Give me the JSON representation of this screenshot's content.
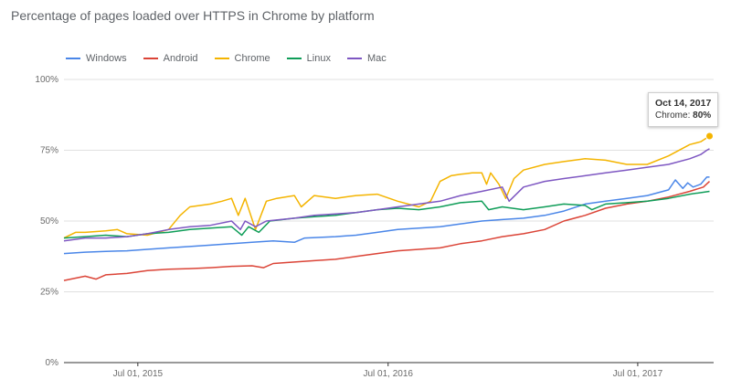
{
  "title": "Percentage of pages loaded over HTTPS in Chrome by platform",
  "tooltip": {
    "date": "Oct 14, 2017",
    "series": "Chrome",
    "value": "80%"
  },
  "chart_data": {
    "type": "line",
    "title": "Percentage of pages loaded over HTTPS in Chrome by platform",
    "xlabel": "",
    "ylabel": "",
    "ylim": [
      0,
      100
    ],
    "legend_position": "top-left",
    "grid": true,
    "y_ticks": [
      {
        "value": 0,
        "label": "0%"
      },
      {
        "value": 25,
        "label": "25%"
      },
      {
        "value": 50,
        "label": "50%"
      },
      {
        "value": 75,
        "label": "75%"
      },
      {
        "value": 100,
        "label": "100%"
      }
    ],
    "x_ticks": [
      {
        "value": "2015-07-01",
        "label": "Jul 01, 2015"
      },
      {
        "value": "2016-07-01",
        "label": "Jul 01, 2016"
      },
      {
        "value": "2017-07-01",
        "label": "Jul 01, 2017"
      }
    ],
    "x_range": [
      "2015-03-15",
      "2017-10-20"
    ],
    "series": [
      {
        "name": "Windows",
        "color": "#4a86e8",
        "points": [
          [
            "2015-03-15",
            38.5
          ],
          [
            "2015-04-15",
            39
          ],
          [
            "2015-05-15",
            39.3
          ],
          [
            "2015-06-15",
            39.5
          ],
          [
            "2015-07-15",
            40
          ],
          [
            "2015-08-15",
            40.5
          ],
          [
            "2015-09-15",
            41
          ],
          [
            "2015-10-15",
            41.5
          ],
          [
            "2015-11-15",
            42
          ],
          [
            "2015-12-15",
            42.5
          ],
          [
            "2016-01-15",
            43
          ],
          [
            "2016-02-15",
            42.5
          ],
          [
            "2016-03-01",
            44
          ],
          [
            "2016-04-15",
            44.5
          ],
          [
            "2016-05-15",
            45
          ],
          [
            "2016-06-15",
            46
          ],
          [
            "2016-07-15",
            47
          ],
          [
            "2016-08-15",
            47.5
          ],
          [
            "2016-09-15",
            48
          ],
          [
            "2016-10-15",
            49
          ],
          [
            "2016-11-15",
            50
          ],
          [
            "2016-12-15",
            50.5
          ],
          [
            "2017-01-15",
            51
          ],
          [
            "2017-02-15",
            52
          ],
          [
            "2017-03-15",
            53.5
          ],
          [
            "2017-04-15",
            56
          ],
          [
            "2017-05-15",
            57
          ],
          [
            "2017-06-15",
            58
          ],
          [
            "2017-07-15",
            59
          ],
          [
            "2017-08-15",
            61
          ],
          [
            "2017-08-25",
            64.5
          ],
          [
            "2017-09-05",
            61.5
          ],
          [
            "2017-09-12",
            63.5
          ],
          [
            "2017-09-20",
            62
          ],
          [
            "2017-10-01",
            63
          ],
          [
            "2017-10-10",
            65.5
          ],
          [
            "2017-10-14",
            65.5
          ]
        ]
      },
      {
        "name": "Android",
        "color": "#db4437",
        "points": [
          [
            "2015-03-15",
            29
          ],
          [
            "2015-04-15",
            30.5
          ],
          [
            "2015-05-01",
            29.5
          ],
          [
            "2015-05-15",
            31
          ],
          [
            "2015-06-15",
            31.5
          ],
          [
            "2015-07-15",
            32.5
          ],
          [
            "2015-08-15",
            33
          ],
          [
            "2015-09-15",
            33.2
          ],
          [
            "2015-10-15",
            33.5
          ],
          [
            "2015-11-15",
            34
          ],
          [
            "2015-12-15",
            34.2
          ],
          [
            "2016-01-01",
            33.5
          ],
          [
            "2016-01-15",
            35
          ],
          [
            "2016-02-15",
            35.5
          ],
          [
            "2016-03-15",
            36
          ],
          [
            "2016-04-15",
            36.5
          ],
          [
            "2016-05-15",
            37.5
          ],
          [
            "2016-06-15",
            38.5
          ],
          [
            "2016-07-15",
            39.5
          ],
          [
            "2016-08-15",
            40
          ],
          [
            "2016-09-15",
            40.5
          ],
          [
            "2016-10-15",
            42
          ],
          [
            "2016-11-15",
            43
          ],
          [
            "2016-12-15",
            44.5
          ],
          [
            "2017-01-15",
            45.5
          ],
          [
            "2017-02-15",
            47
          ],
          [
            "2017-03-15",
            50
          ],
          [
            "2017-04-15",
            52
          ],
          [
            "2017-05-15",
            54.5
          ],
          [
            "2017-06-15",
            56
          ],
          [
            "2017-07-15",
            57
          ],
          [
            "2017-08-15",
            58.5
          ],
          [
            "2017-09-15",
            60.5
          ],
          [
            "2017-10-05",
            62
          ],
          [
            "2017-10-14",
            64
          ]
        ]
      },
      {
        "name": "Chrome",
        "color": "#f4b400",
        "points": [
          [
            "2015-03-15",
            44
          ],
          [
            "2015-04-01",
            46
          ],
          [
            "2015-04-15",
            46
          ],
          [
            "2015-05-15",
            46.5
          ],
          [
            "2015-06-01",
            47
          ],
          [
            "2015-06-15",
            45.5
          ],
          [
            "2015-07-15",
            45
          ],
          [
            "2015-08-15",
            47
          ],
          [
            "2015-09-01",
            52
          ],
          [
            "2015-09-15",
            55
          ],
          [
            "2015-10-15",
            56
          ],
          [
            "2015-11-01",
            57
          ],
          [
            "2015-11-15",
            58
          ],
          [
            "2015-11-25",
            52
          ],
          [
            "2015-12-05",
            58
          ],
          [
            "2015-12-20",
            47
          ],
          [
            "2016-01-05",
            57
          ],
          [
            "2016-01-20",
            58
          ],
          [
            "2016-02-15",
            59
          ],
          [
            "2016-02-25",
            55
          ],
          [
            "2016-03-15",
            59
          ],
          [
            "2016-04-15",
            58
          ],
          [
            "2016-05-15",
            59
          ],
          [
            "2016-06-15",
            59.5
          ],
          [
            "2016-07-15",
            57
          ],
          [
            "2016-08-15",
            55
          ],
          [
            "2016-09-01",
            57
          ],
          [
            "2016-09-15",
            64
          ],
          [
            "2016-10-01",
            66
          ],
          [
            "2016-10-15",
            66.5
          ],
          [
            "2016-11-01",
            67
          ],
          [
            "2016-11-15",
            67
          ],
          [
            "2016-11-22",
            63
          ],
          [
            "2016-11-28",
            67
          ],
          [
            "2016-12-10",
            63
          ],
          [
            "2016-12-20",
            58
          ],
          [
            "2017-01-01",
            65
          ],
          [
            "2017-01-15",
            68
          ],
          [
            "2017-02-15",
            70
          ],
          [
            "2017-03-15",
            71
          ],
          [
            "2017-04-15",
            72
          ],
          [
            "2017-05-15",
            71.5
          ],
          [
            "2017-06-15",
            70
          ],
          [
            "2017-07-15",
            70
          ],
          [
            "2017-08-15",
            73
          ],
          [
            "2017-09-15",
            77
          ],
          [
            "2017-10-01",
            78
          ],
          [
            "2017-10-14",
            80
          ]
        ]
      },
      {
        "name": "Linux",
        "color": "#0f9d58",
        "points": [
          [
            "2015-03-15",
            44
          ],
          [
            "2015-04-15",
            44.5
          ],
          [
            "2015-05-15",
            45
          ],
          [
            "2015-06-15",
            44.5
          ],
          [
            "2015-07-15",
            45.5
          ],
          [
            "2015-08-15",
            46
          ],
          [
            "2015-09-15",
            47
          ],
          [
            "2015-10-15",
            47.5
          ],
          [
            "2015-11-15",
            48
          ],
          [
            "2015-11-30",
            45
          ],
          [
            "2015-12-10",
            48
          ],
          [
            "2015-12-25",
            46
          ],
          [
            "2016-01-10",
            50
          ],
          [
            "2016-02-15",
            51
          ],
          [
            "2016-03-15",
            51.5
          ],
          [
            "2016-04-15",
            52
          ],
          [
            "2016-05-15",
            53
          ],
          [
            "2016-06-15",
            54
          ],
          [
            "2016-07-15",
            54.5
          ],
          [
            "2016-08-15",
            54
          ],
          [
            "2016-09-15",
            55
          ],
          [
            "2016-10-15",
            56.5
          ],
          [
            "2016-11-15",
            57
          ],
          [
            "2016-11-25",
            54
          ],
          [
            "2016-12-15",
            55
          ],
          [
            "2017-01-15",
            54
          ],
          [
            "2017-02-15",
            55
          ],
          [
            "2017-03-15",
            56
          ],
          [
            "2017-04-15",
            55.5
          ],
          [
            "2017-04-25",
            54
          ],
          [
            "2017-05-15",
            56
          ],
          [
            "2017-06-15",
            56.5
          ],
          [
            "2017-07-15",
            57
          ],
          [
            "2017-08-15",
            58
          ],
          [
            "2017-09-15",
            59.5
          ],
          [
            "2017-10-14",
            60.5
          ]
        ]
      },
      {
        "name": "Mac",
        "color": "#7e57c2",
        "points": [
          [
            "2015-03-15",
            43
          ],
          [
            "2015-04-15",
            44
          ],
          [
            "2015-05-15",
            44
          ],
          [
            "2015-06-15",
            44.5
          ],
          [
            "2015-07-15",
            45.5
          ],
          [
            "2015-08-15",
            47
          ],
          [
            "2015-09-15",
            48
          ],
          [
            "2015-10-15",
            48.5
          ],
          [
            "2015-11-15",
            50
          ],
          [
            "2015-11-28",
            47
          ],
          [
            "2015-12-05",
            50
          ],
          [
            "2015-12-20",
            48
          ],
          [
            "2016-01-05",
            50
          ],
          [
            "2016-02-15",
            51
          ],
          [
            "2016-03-15",
            52
          ],
          [
            "2016-04-15",
            52.5
          ],
          [
            "2016-05-15",
            53
          ],
          [
            "2016-06-15",
            54
          ],
          [
            "2016-07-15",
            55
          ],
          [
            "2016-08-15",
            56
          ],
          [
            "2016-09-15",
            57
          ],
          [
            "2016-10-15",
            59
          ],
          [
            "2016-11-15",
            60.5
          ],
          [
            "2016-12-15",
            62
          ],
          [
            "2016-12-25",
            57
          ],
          [
            "2017-01-15",
            62
          ],
          [
            "2017-02-15",
            64
          ],
          [
            "2017-03-15",
            65
          ],
          [
            "2017-04-15",
            66
          ],
          [
            "2017-05-15",
            67
          ],
          [
            "2017-06-15",
            68
          ],
          [
            "2017-07-15",
            69
          ],
          [
            "2017-08-15",
            70
          ],
          [
            "2017-09-15",
            72
          ],
          [
            "2017-10-01",
            73.5
          ],
          [
            "2017-10-10",
            75
          ],
          [
            "2017-10-14",
            75.5
          ]
        ]
      }
    ]
  }
}
